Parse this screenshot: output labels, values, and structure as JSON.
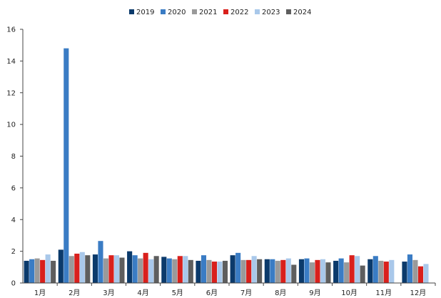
{
  "chart_data": {
    "type": "bar",
    "title": "",
    "xlabel": "",
    "ylabel": "",
    "ylim": [
      0,
      16
    ],
    "yticks": [
      0,
      2,
      4,
      6,
      8,
      10,
      12,
      14,
      16
    ],
    "grid": false,
    "legend": "top",
    "categories": [
      "1月",
      "2月",
      "3月",
      "4月",
      "5月",
      "6月",
      "7月",
      "8月",
      "9月",
      "10月",
      "11月",
      "12月"
    ],
    "series": [
      {
        "name": "2019",
        "color": "#0b3a6b",
        "values": [
          1.4,
          2.1,
          1.8,
          2.0,
          1.65,
          1.4,
          1.75,
          1.5,
          1.5,
          1.4,
          1.5,
          1.35
        ]
      },
      {
        "name": "2020",
        "color": "#3a7cc4",
        "values": [
          1.5,
          14.8,
          2.65,
          1.75,
          1.55,
          1.75,
          1.9,
          1.5,
          1.55,
          1.55,
          1.7,
          1.8
        ]
      },
      {
        "name": "2021",
        "color": "#9a9a9a",
        "values": [
          1.55,
          1.7,
          1.55,
          1.55,
          1.5,
          1.45,
          1.45,
          1.4,
          1.3,
          1.3,
          1.4,
          1.45
        ]
      },
      {
        "name": "2022",
        "color": "#d9201c",
        "values": [
          1.45,
          1.85,
          1.75,
          1.9,
          1.7,
          1.35,
          1.45,
          1.45,
          1.45,
          1.75,
          1.35,
          1.05
        ]
      },
      {
        "name": "2023",
        "color": "#a9c8ea",
        "values": [
          1.8,
          1.95,
          1.75,
          1.5,
          1.7,
          1.35,
          1.7,
          1.55,
          1.5,
          1.7,
          1.45,
          1.2
        ]
      },
      {
        "name": "2024",
        "color": "#5e5e5e",
        "values": [
          1.4,
          1.75,
          1.6,
          1.7,
          1.45,
          1.4,
          1.5,
          1.15,
          1.3,
          1.1,
          null,
          null
        ]
      }
    ]
  }
}
